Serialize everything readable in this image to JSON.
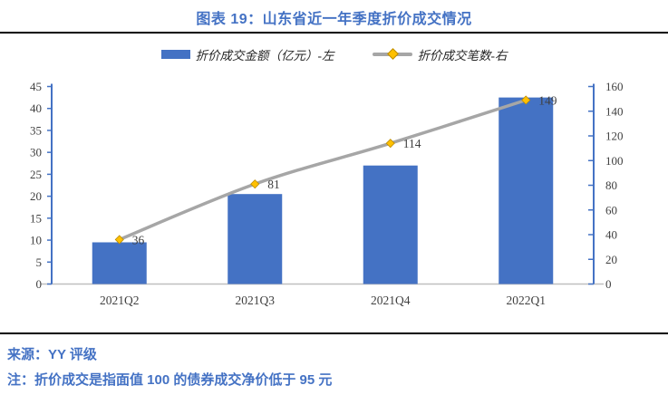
{
  "header": {
    "title": "图表 19：山东省近一年季度折价成交情况"
  },
  "legend": {
    "bar_series_label": "折价成交金额（亿元）-左",
    "line_series_label": "折价成交笔数-右"
  },
  "chart_data": {
    "type": "bar",
    "subtype": "bar-line-combo",
    "title": "图表 19：山东省近一年季度折价成交情况",
    "categories": [
      "2021Q2",
      "2021Q3",
      "2021Q4",
      "2022Q1"
    ],
    "series": [
      {
        "name": "折价成交金额（亿元）-左",
        "type": "bar",
        "axis": "left",
        "values": [
          9.5,
          20.5,
          27,
          42.5
        ],
        "color": "#4472C4"
      },
      {
        "name": "折价成交笔数-右",
        "type": "line",
        "axis": "right",
        "values": [
          36,
          81,
          114,
          149
        ],
        "data_labels": [
          "36",
          "81",
          "114",
          "149"
        ],
        "line_color": "#A6A6A6",
        "marker": "diamond",
        "marker_color": "#FFC000",
        "smooth": true
      }
    ],
    "left_axis": {
      "min": 0,
      "max": 45,
      "step": 5
    },
    "right_axis": {
      "min": 0,
      "max": 160,
      "step": 20
    },
    "axis_line_color": "#4472C4",
    "baseline_color": "#BFBFBF",
    "tick_label_color": "#404040",
    "data_label_color": "#404040",
    "gridlines": false,
    "legend_position": "top"
  },
  "footer": {
    "source": "来源：YY 评级",
    "note": "注：折价成交是指面值 100 的债券成交净价低于 95 元"
  }
}
